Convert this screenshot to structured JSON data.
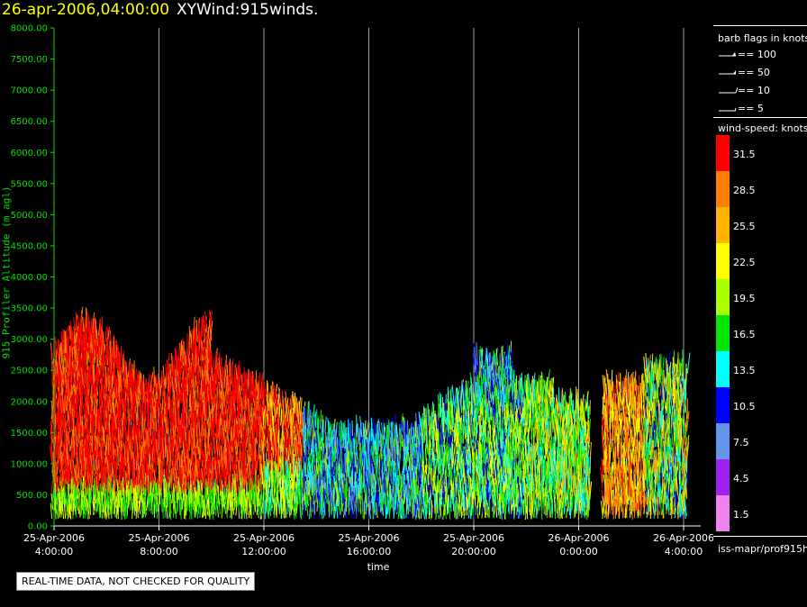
{
  "header": {
    "timestamp": "26-apr-2006,04:00:00",
    "product": "XYWind:915winds."
  },
  "chart_data": {
    "type": "scatter",
    "title": "26-apr-2006,04:00:00 XYWind:915winds.",
    "xlabel": "time",
    "ylabel": "915 Profiler Altitude (m agl)",
    "ylim": [
      0,
      8000
    ],
    "xlim_hours": [
      0,
      25
    ],
    "y_ticks": [
      "0.00",
      "500.00",
      "1000.00",
      "1500.00",
      "2000.00",
      "2500.00",
      "3000.00",
      "3500.00",
      "4000.00",
      "4500.00",
      "5000.00",
      "5500.00",
      "6000.00",
      "6500.00",
      "7000.00",
      "7500.00",
      "8000.00"
    ],
    "x_ticks": [
      {
        "date": "25-Apr-2006",
        "time": "4:00:00"
      },
      {
        "date": "25-Apr-2006",
        "time": "8:00:00"
      },
      {
        "date": "25-Apr-2006",
        "time": "12:00:00"
      },
      {
        "date": "25-Apr-2006",
        "time": "16:00:00"
      },
      {
        "date": "25-Apr-2006",
        "time": "20:00:00"
      },
      {
        "date": "26-Apr-2006",
        "time": "0:00:00"
      },
      {
        "date": "26-Apr-2006",
        "time": "4:00:00"
      }
    ],
    "grid": "vertical",
    "colors": {
      "axis": "#00e000",
      "grid": "#9a9a9a"
    }
  },
  "legend": {
    "barb_title": "barb flags in knots",
    "barbs": [
      {
        "label": "== 100",
        "kind": "flag"
      },
      {
        "label": "== 50",
        "kind": "flag"
      },
      {
        "label": "== 10",
        "kind": "full"
      },
      {
        "label": "== 5",
        "kind": "half"
      }
    ],
    "speed_title": "wind-speed: knots",
    "speed_bins": [
      {
        "label": "31.5",
        "color": "#ff0000"
      },
      {
        "label": "28.5",
        "color": "#ff8000"
      },
      {
        "label": "25.5",
        "color": "#ffb400"
      },
      {
        "label": "22.5",
        "color": "#ffff00"
      },
      {
        "label": "19.5",
        "color": "#aaff00"
      },
      {
        "label": "16.5",
        "color": "#00e600"
      },
      {
        "label": "13.5",
        "color": "#00ffff"
      },
      {
        "label": "10.5",
        "color": "#0000ff"
      },
      {
        "label": "7.5",
        "color": "#6495ed"
      },
      {
        "label": "4.5",
        "color": "#a020f0"
      },
      {
        "label": "1.5",
        "color": "#ee82ee"
      }
    ]
  },
  "footer": {
    "source": "iss-mapr/prof915h",
    "warning": "REAL-TIME DATA, NOT CHECKED FOR QUALITY"
  }
}
